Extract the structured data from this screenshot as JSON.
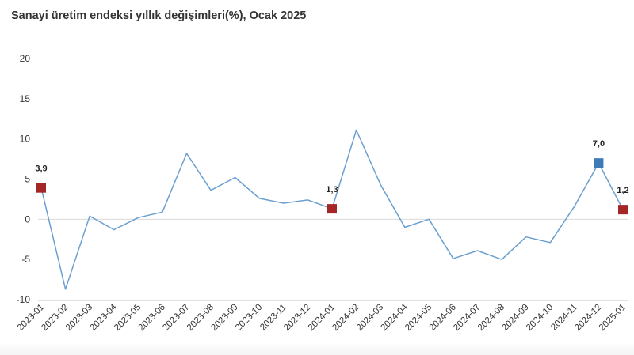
{
  "chart_data": {
    "type": "line",
    "title": "Sanayi üretim endeksi yıllık değişimleri(%), Ocak 2025",
    "xlabel": "",
    "ylabel": "",
    "categories": [
      "2023-01",
      "2023-02",
      "2023-03",
      "2023-04",
      "2023-05",
      "2023-06",
      "2023-07",
      "2023-08",
      "2023-09",
      "2023-10",
      "2023-11",
      "2023-12",
      "2024-01",
      "2024-02",
      "2024-03",
      "2024-04",
      "2024-05",
      "2024-06",
      "2024-07",
      "2024-08",
      "2024-09",
      "2024-10",
      "2024-11",
      "2024-12",
      "2025-01"
    ],
    "series": [
      {
        "values": [
          3.9,
          -8.7,
          0.4,
          -1.3,
          0.2,
          0.9,
          8.2,
          3.6,
          5.2,
          2.6,
          2.0,
          2.4,
          1.3,
          11.1,
          4.3,
          -1.0,
          0.0,
          -4.9,
          -3.9,
          -5.0,
          -2.2,
          -2.9,
          1.6,
          7.0,
          1.2
        ]
      }
    ],
    "ylim": [
      -10,
      20
    ],
    "yticks": [
      "20",
      "15",
      "10",
      "5",
      "0",
      "-5",
      "-10"
    ],
    "grid": false,
    "highlighted_points": [
      {
        "index": 0,
        "label": "3,9",
        "color": "#a52626"
      },
      {
        "index": 12,
        "label": "1,3",
        "color": "#a52626"
      },
      {
        "index": 23,
        "label": "7,0",
        "color": "#3d7ab8"
      },
      {
        "index": 24,
        "label": "1,2",
        "color": "#a52626"
      }
    ],
    "colors": {
      "line": "#6a9fd0",
      "zero_line": "#d9d9d9",
      "axis": "#bfbfbf"
    }
  }
}
